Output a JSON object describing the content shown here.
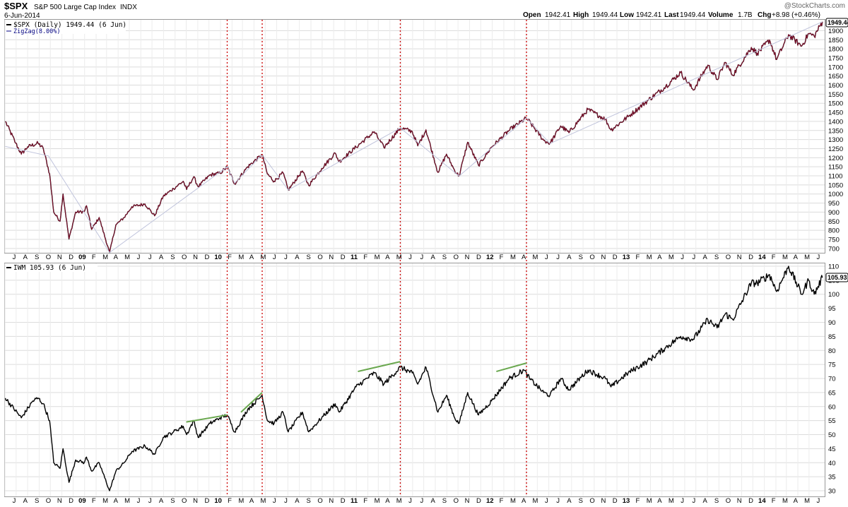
{
  "header": {
    "symbol": "$SPX",
    "name": "S&P 500 Large Cap Index",
    "exchange": "INDX",
    "date": "6-Jun-2014",
    "watermark": "@StockCharts.com",
    "open_label": "Open",
    "open": "1942.41",
    "high_label": "High",
    "high": "1949.44",
    "low_label": "Low",
    "low": "1942.41",
    "last_label": "Last",
    "last": "1949.44",
    "volume_label": "Volume",
    "volume": "1.7B",
    "chg_label": "Chg",
    "chg": "+8.98 (+0.46%)"
  },
  "colors": {
    "price_line": "#000000",
    "price_overlay": "#b0103a",
    "zigzag": "#c0c4dc",
    "marker_lines": "#cc0000",
    "divergence_lines": "#6aa84f",
    "grid": "#dcdcdc"
  },
  "chart_data": [
    {
      "type": "line",
      "legend": [
        "$SPX (Daily) 1949.44 (6 Jun)",
        "ZigZag(8.00%)"
      ],
      "last_value_label": "1949.44",
      "y_ticks": [
        700,
        750,
        800,
        850,
        900,
        950,
        1000,
        1050,
        1100,
        1150,
        1200,
        1250,
        1300,
        1350,
        1400,
        1450,
        1500,
        1550,
        1600,
        1650,
        1700,
        1750,
        1800,
        1850,
        1900
      ],
      "ylim": [
        676,
        1960
      ],
      "x_month_labels": [
        "J",
        "A",
        "S",
        "O",
        "N",
        "D",
        "09",
        "F",
        "M",
        "A",
        "M",
        "J",
        "J",
        "A",
        "S",
        "O",
        "N",
        "D",
        "10",
        "F",
        "M",
        "A",
        "M",
        "J",
        "J",
        "A",
        "S",
        "O",
        "N",
        "D",
        "11",
        "F",
        "M",
        "A",
        "M",
        "J",
        "J",
        "A",
        "S",
        "O",
        "N",
        "D",
        "12",
        "F",
        "M",
        "A",
        "M",
        "J",
        "J",
        "A",
        "S",
        "O",
        "N",
        "D",
        "13",
        "F",
        "M",
        "A",
        "M",
        "J",
        "J",
        "A",
        "S",
        "O",
        "N",
        "D",
        "14",
        "F",
        "M",
        "A",
        "M",
        "J"
      ],
      "start": "2008-06",
      "end": "2014-06",
      "series": [
        {
          "role": "price",
          "points": [
            [
              "2008-06-02",
              1400
            ],
            [
              "2008-06-30",
              1280
            ],
            [
              "2008-07-15",
              1220
            ],
            [
              "2008-08-01",
              1260
            ],
            [
              "2008-08-29",
              1280
            ],
            [
              "2008-09-12",
              1250
            ],
            [
              "2008-09-29",
              1110
            ],
            [
              "2008-10-10",
              900
            ],
            [
              "2008-10-27",
              850
            ],
            [
              "2008-11-04",
              1000
            ],
            [
              "2008-11-20",
              752
            ],
            [
              "2008-12-08",
              900
            ],
            [
              "2008-12-31",
              903
            ],
            [
              "2009-01-06",
              935
            ],
            [
              "2009-01-20",
              805
            ],
            [
              "2009-02-09",
              870
            ],
            [
              "2009-03-09",
              677
            ],
            [
              "2009-03-26",
              830
            ],
            [
              "2009-04-17",
              870
            ],
            [
              "2009-05-08",
              930
            ],
            [
              "2009-06-12",
              945
            ],
            [
              "2009-07-08",
              880
            ],
            [
              "2009-07-31",
              987
            ],
            [
              "2009-08-28",
              1030
            ],
            [
              "2009-09-23",
              1070
            ],
            [
              "2009-10-02",
              1025
            ],
            [
              "2009-10-21",
              1095
            ],
            [
              "2009-11-02",
              1040
            ],
            [
              "2009-12-04",
              1105
            ],
            [
              "2009-12-31",
              1115
            ],
            [
              "2010-01-19",
              1150
            ],
            [
              "2010-02-08",
              1056
            ],
            [
              "2010-03-15",
              1150
            ],
            [
              "2010-04-23",
              1217
            ],
            [
              "2010-05-07",
              1110
            ],
            [
              "2010-05-25",
              1070
            ],
            [
              "2010-06-18",
              1117
            ],
            [
              "2010-07-02",
              1022
            ],
            [
              "2010-08-09",
              1127
            ],
            [
              "2010-08-26",
              1047
            ],
            [
              "2010-09-30",
              1141
            ],
            [
              "2010-11-05",
              1225
            ],
            [
              "2010-11-16",
              1178
            ],
            [
              "2010-12-31",
              1258
            ],
            [
              "2011-02-18",
              1343
            ],
            [
              "2011-03-16",
              1256
            ],
            [
              "2011-04-29",
              1364
            ],
            [
              "2011-05-31",
              1345
            ],
            [
              "2011-06-15",
              1265
            ],
            [
              "2011-07-07",
              1353
            ],
            [
              "2011-08-08",
              1119
            ],
            [
              "2011-08-31",
              1219
            ],
            [
              "2011-09-22",
              1129
            ],
            [
              "2011-10-04",
              1099
            ],
            [
              "2011-10-27",
              1285
            ],
            [
              "2011-11-25",
              1158
            ],
            [
              "2011-12-30",
              1258
            ],
            [
              "2012-02-15",
              1350
            ],
            [
              "2012-04-02",
              1419
            ],
            [
              "2012-05-18",
              1296
            ],
            [
              "2012-06-04",
              1278
            ],
            [
              "2012-07-03",
              1375
            ],
            [
              "2012-07-25",
              1338
            ],
            [
              "2012-09-14",
              1466
            ],
            [
              "2012-10-31",
              1412
            ],
            [
              "2012-11-15",
              1353
            ],
            [
              "2012-12-31",
              1426
            ],
            [
              "2013-02-20",
              1512
            ],
            [
              "2013-04-11",
              1593
            ],
            [
              "2013-05-21",
              1669
            ],
            [
              "2013-06-24",
              1573
            ],
            [
              "2013-08-02",
              1710
            ],
            [
              "2013-08-27",
              1631
            ],
            [
              "2013-09-18",
              1725
            ],
            [
              "2013-10-08",
              1655
            ],
            [
              "2013-11-27",
              1807
            ],
            [
              "2013-12-13",
              1775
            ],
            [
              "2014-01-15",
              1848
            ],
            [
              "2014-02-03",
              1741
            ],
            [
              "2014-03-07",
              1878
            ],
            [
              "2014-04-11",
              1815
            ],
            [
              "2014-04-30",
              1884
            ],
            [
              "2014-05-15",
              1870
            ],
            [
              "2014-06-06",
              1949.44
            ]
          ]
        },
        {
          "role": "zigzag",
          "points": [
            [
              "2008-06-02",
              1262
            ],
            [
              "2008-09-26",
              1210
            ],
            [
              "2009-03-09",
              677
            ],
            [
              "2010-01-19",
              1150
            ],
            [
              "2010-02-08",
              1060
            ],
            [
              "2010-04-23",
              1217
            ],
            [
              "2010-07-02",
              1022
            ],
            [
              "2011-04-29",
              1364
            ],
            [
              "2011-10-04",
              1099
            ],
            [
              "2012-04-02",
              1419
            ],
            [
              "2012-06-04",
              1278
            ],
            [
              "2014-06-06",
              1949
            ]
          ]
        }
      ]
    },
    {
      "type": "line",
      "legend": [
        "IWM 105.93 (6 Jun)"
      ],
      "last_value_label": "105.93",
      "y_ticks": [
        30,
        35,
        40,
        45,
        50,
        55,
        60,
        65,
        70,
        75,
        80,
        85,
        90,
        95,
        100,
        105,
        110
      ],
      "ylim": [
        28,
        111
      ],
      "x_month_labels": [
        "J",
        "A",
        "S",
        "O",
        "N",
        "D",
        "09",
        "F",
        "M",
        "A",
        "M",
        "J",
        "J",
        "A",
        "S",
        "O",
        "N",
        "D",
        "10",
        "F",
        "M",
        "A",
        "M",
        "J",
        "J",
        "A",
        "S",
        "O",
        "N",
        "D",
        "11",
        "F",
        "M",
        "A",
        "M",
        "J",
        "J",
        "A",
        "S",
        "O",
        "N",
        "D",
        "12",
        "F",
        "M",
        "A",
        "M",
        "J",
        "J",
        "A",
        "S",
        "O",
        "N",
        "D",
        "13",
        "F",
        "M",
        "A",
        "M",
        "J",
        "J",
        "A",
        "S",
        "O",
        "N",
        "D",
        "14",
        "F",
        "M",
        "A",
        "M",
        "J"
      ],
      "start": "2008-06",
      "end": "2014-06",
      "series": [
        {
          "role": "price",
          "points": [
            [
              "2008-06-02",
              63
            ],
            [
              "2008-07-15",
              56
            ],
            [
              "2008-08-15",
              62
            ],
            [
              "2008-08-29",
              63
            ],
            [
              "2008-09-12",
              61
            ],
            [
              "2008-09-29",
              55
            ],
            [
              "2008-10-10",
              40
            ],
            [
              "2008-10-27",
              38
            ],
            [
              "2008-11-04",
              45
            ],
            [
              "2008-11-20",
              33
            ],
            [
              "2008-12-08",
              41
            ],
            [
              "2008-12-31",
              40
            ],
            [
              "2009-01-06",
              42
            ],
            [
              "2009-01-20",
              37
            ],
            [
              "2009-02-09",
              40
            ],
            [
              "2009-03-09",
              30
            ],
            [
              "2009-03-26",
              37
            ],
            [
              "2009-04-17",
              40
            ],
            [
              "2009-05-08",
              44
            ],
            [
              "2009-06-12",
              46
            ],
            [
              "2009-07-08",
              43
            ],
            [
              "2009-07-31",
              49
            ],
            [
              "2009-08-28",
              51
            ],
            [
              "2009-09-23",
              53
            ],
            [
              "2009-10-02",
              50
            ],
            [
              "2009-10-21",
              55
            ],
            [
              "2009-11-02",
              49
            ],
            [
              "2009-12-04",
              54
            ],
            [
              "2009-12-31",
              56
            ],
            [
              "2010-01-19",
              57
            ],
            [
              "2010-02-08",
              51
            ],
            [
              "2010-03-15",
              59
            ],
            [
              "2010-04-23",
              64
            ],
            [
              "2010-05-07",
              55
            ],
            [
              "2010-05-25",
              54
            ],
            [
              "2010-06-18",
              58
            ],
            [
              "2010-07-02",
              51
            ],
            [
              "2010-08-09",
              58
            ],
            [
              "2010-08-26",
              51
            ],
            [
              "2010-09-30",
              56
            ],
            [
              "2010-11-05",
              61
            ],
            [
              "2010-11-16",
              58
            ],
            [
              "2010-12-31",
              67
            ],
            [
              "2011-02-18",
              72
            ],
            [
              "2011-03-16",
              68
            ],
            [
              "2011-04-29",
              74
            ],
            [
              "2011-05-31",
              72
            ],
            [
              "2011-06-15",
              68
            ],
            [
              "2011-07-07",
              74
            ],
            [
              "2011-08-08",
              58
            ],
            [
              "2011-08-31",
              64
            ],
            [
              "2011-09-22",
              56
            ],
            [
              "2011-10-04",
              54
            ],
            [
              "2011-10-27",
              65
            ],
            [
              "2011-11-25",
              57
            ],
            [
              "2011-12-30",
              62
            ],
            [
              "2012-02-15",
              70
            ],
            [
              "2012-03-26",
              73
            ],
            [
              "2012-04-10",
              70
            ],
            [
              "2012-05-18",
              65
            ],
            [
              "2012-06-04",
              64
            ],
            [
              "2012-07-03",
              70
            ],
            [
              "2012-07-25",
              66
            ],
            [
              "2012-09-14",
              73
            ],
            [
              "2012-10-31",
              70
            ],
            [
              "2012-11-15",
              67
            ],
            [
              "2012-12-31",
              72
            ],
            [
              "2013-02-20",
              76
            ],
            [
              "2013-04-11",
              81
            ],
            [
              "2013-05-21",
              85
            ],
            [
              "2013-06-24",
              84
            ],
            [
              "2013-08-02",
              91
            ],
            [
              "2013-08-27",
              88
            ],
            [
              "2013-09-18",
              93
            ],
            [
              "2013-10-08",
              91
            ],
            [
              "2013-11-27",
              104
            ],
            [
              "2013-12-13",
              104
            ],
            [
              "2014-01-15",
              107
            ],
            [
              "2014-02-03",
              101
            ],
            [
              "2014-03-07",
              110
            ],
            [
              "2014-04-11",
              100
            ],
            [
              "2014-04-30",
              105
            ],
            [
              "2014-05-15",
              100
            ],
            [
              "2014-06-06",
              105.93
            ]
          ]
        }
      ]
    }
  ],
  "annotations": {
    "vertical_dotted_lines": [
      "2010-01-19",
      "2010-04-23",
      "2011-04-29",
      "2012-04-02"
    ],
    "divergence_segments": [
      [
        [
          "2009-10-01",
          54.5
        ],
        [
          "2010-01-19",
          57
        ]
      ],
      [
        [
          "2010-02-25",
          58
        ],
        [
          "2010-04-23",
          65
        ]
      ],
      [
        [
          "2011-01-05",
          72.5
        ],
        [
          "2011-04-29",
          76
        ]
      ],
      [
        [
          "2012-01-12",
          72.5
        ],
        [
          "2012-04-02",
          75.5
        ]
      ]
    ]
  }
}
